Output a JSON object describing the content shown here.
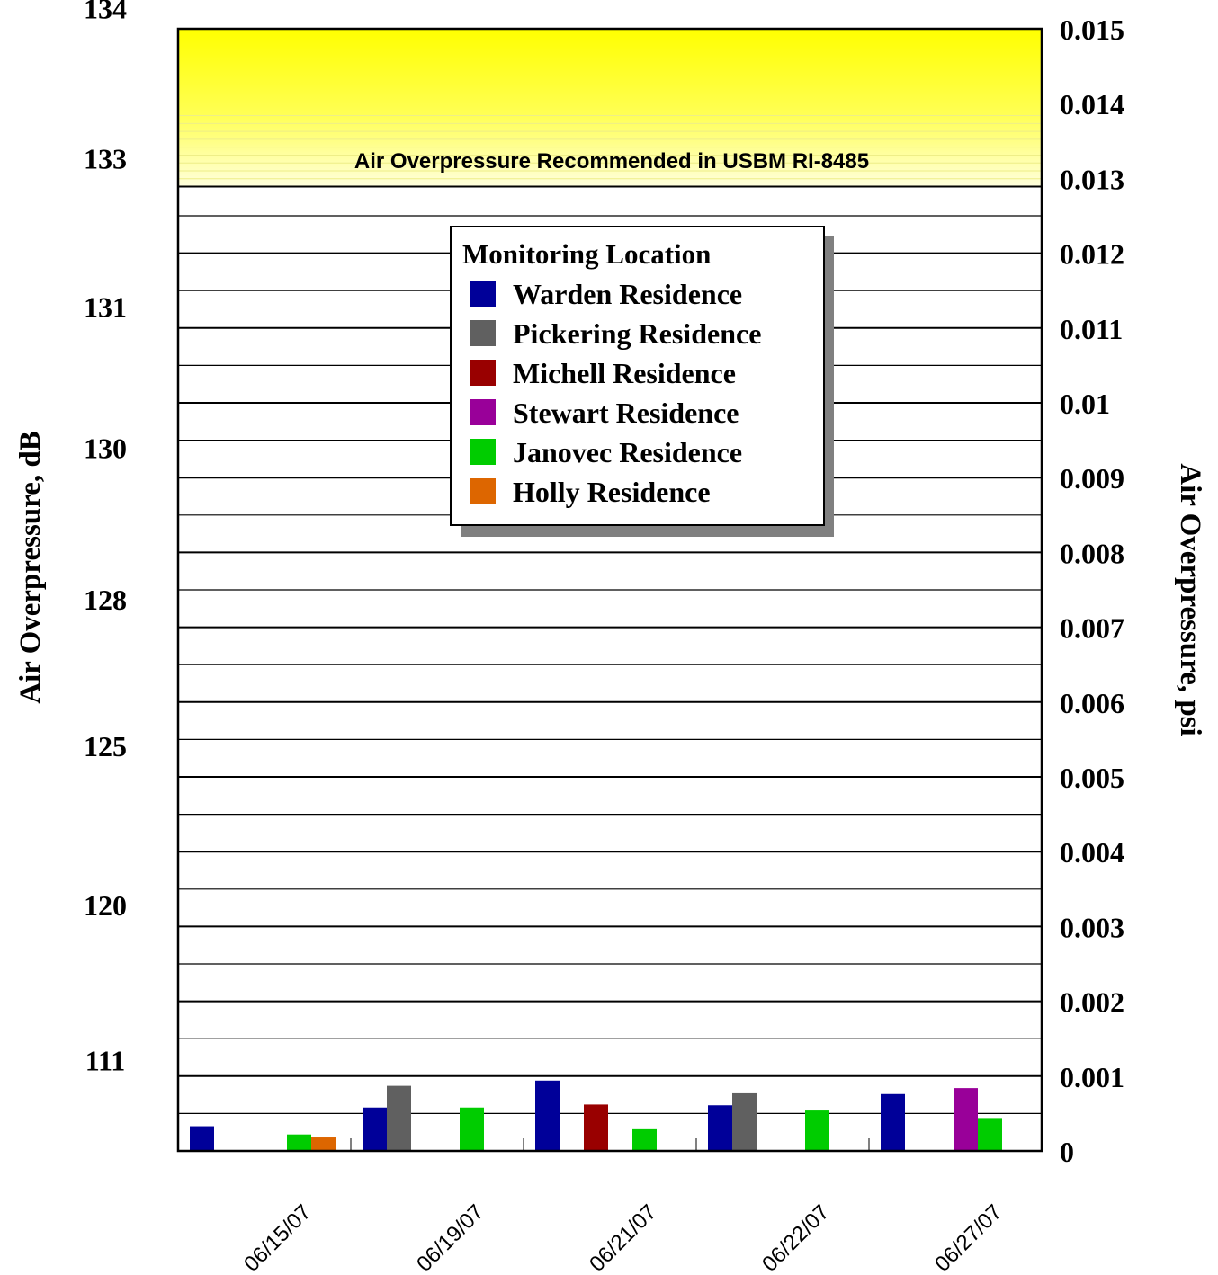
{
  "chart_data": {
    "type": "bar",
    "title": "",
    "categories": [
      "06/15/07",
      "06/19/07",
      "06/21/07",
      "06/22/07",
      "06/27/07"
    ],
    "ylabel_left": "Air Overpressure, dB",
    "ylabel_right": "Air Overpressure, psi",
    "xlabel": "",
    "y_right_lim": [
      0,
      0.015
    ],
    "y_right_ticks": [
      "0",
      "0.001",
      "0.002",
      "0.003",
      "0.004",
      "0.005",
      "0.006",
      "0.007",
      "0.008",
      "0.009",
      "0.01",
      "0.011",
      "0.012",
      "0.013",
      "0.014",
      "0.015"
    ],
    "y_right_tick_values": [
      0,
      0.001,
      0.002,
      0.003,
      0.004,
      0.005,
      0.006,
      0.007,
      0.008,
      0.009,
      0.01,
      0.011,
      0.012,
      0.013,
      0.014,
      0.015
    ],
    "y_left_ticks": [
      "111",
      "120",
      "125",
      "128",
      "130",
      "131",
      "133",
      "134"
    ],
    "y_left_tick_psi": [
      0.00103,
      0.0031,
      0.00523,
      0.00719,
      0.00921,
      0.0111,
      0.01308,
      0.01509
    ],
    "grid_psi_step": 0.0005,
    "major_grid_psi_step": 0.001,
    "threshold": {
      "label": "Air Overpressure Recommended in USBM RI-8485",
      "from_psi": 0.01289,
      "to_psi": 0.015,
      "color": "#ffff00"
    },
    "legend": {
      "title": "Monitoring Location",
      "placement": "upper-center"
    },
    "series": [
      {
        "name": "Warden Residence",
        "color": "#000099",
        "values": [
          0.00033,
          0.00058,
          0.00094,
          0.00061,
          0.00076
        ]
      },
      {
        "name": "Pickering Residence",
        "color": "#606060",
        "values": [
          null,
          0.00087,
          null,
          0.00077,
          null
        ]
      },
      {
        "name": "Michell Residence",
        "color": "#990000",
        "values": [
          null,
          null,
          0.00062,
          null,
          null
        ]
      },
      {
        "name": "Stewart Residence",
        "color": "#990099",
        "values": [
          null,
          null,
          null,
          null,
          0.00084
        ]
      },
      {
        "name": "Janovec Residence",
        "color": "#00cc00",
        "values": [
          0.00022,
          0.00058,
          0.00029,
          0.00054,
          0.00044
        ]
      },
      {
        "name": "Holly Residence",
        "color": "#dd6600",
        "values": [
          0.00018,
          null,
          null,
          null,
          null
        ]
      }
    ]
  }
}
